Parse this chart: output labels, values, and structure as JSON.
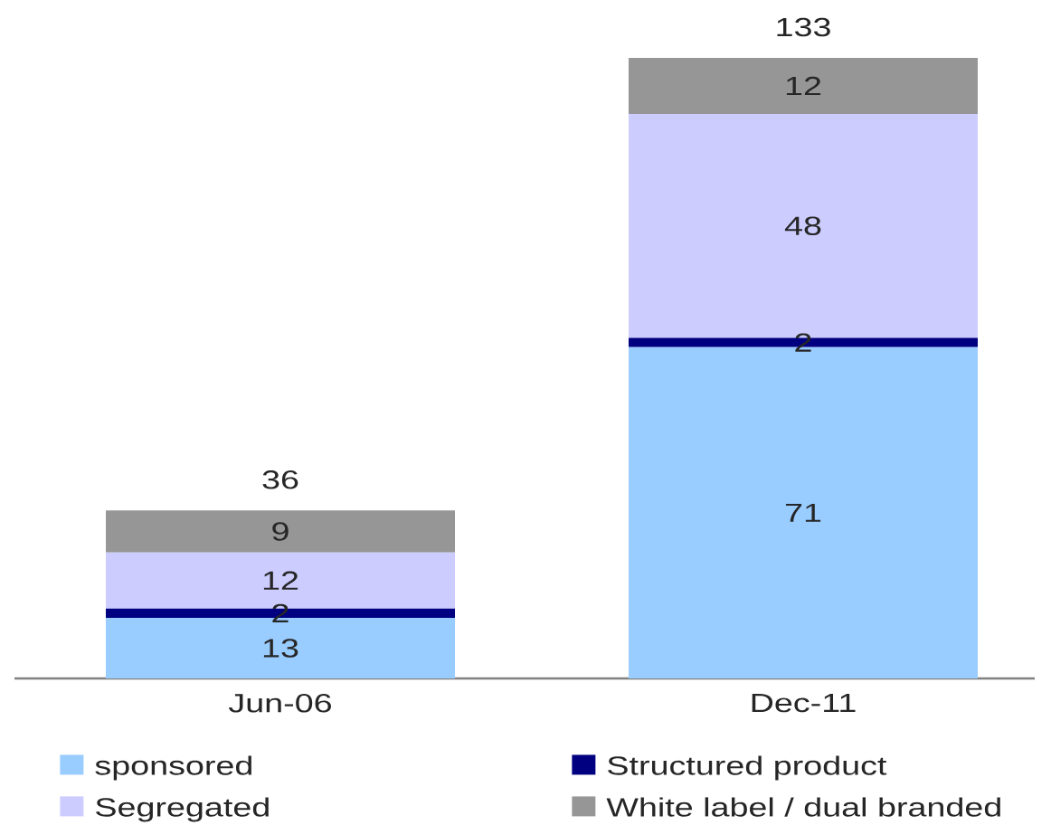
{
  "chart_data": {
    "type": "bar",
    "stacked": true,
    "categories": [
      "Jun-06",
      "Dec-11"
    ],
    "series": [
      {
        "name": "sponsored",
        "color": "#99ccff",
        "values": [
          13,
          71
        ]
      },
      {
        "name": "Structured product",
        "color": "#000080",
        "values": [
          2,
          2
        ]
      },
      {
        "name": "Segregated",
        "color": "#ccccff",
        "values": [
          12,
          48
        ]
      },
      {
        "name": "White label / dual branded",
        "color": "#969696",
        "values": [
          9,
          12
        ]
      }
    ],
    "data_labels": true,
    "totals": [
      "36",
      "133"
    ],
    "legend": "bottom"
  }
}
